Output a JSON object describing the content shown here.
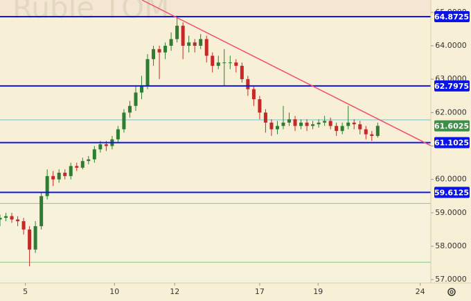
{
  "chart_data": {
    "type": "candlestick",
    "watermark": "Ruble TOM",
    "xlim": [
      0,
      73
    ],
    "xticks": [
      {
        "value": 4.3,
        "label": "5"
      },
      {
        "value": 19.4,
        "label": "10"
      },
      {
        "value": 29.6,
        "label": "12"
      },
      {
        "value": 44,
        "label": "17"
      },
      {
        "value": 53.9,
        "label": "19"
      },
      {
        "value": 71.2,
        "label": "24"
      }
    ],
    "ylim": [
      56.9,
      65.37
    ],
    "yticks": [
      {
        "value": 57,
        "label": "57.0000"
      },
      {
        "value": 58,
        "label": "58.0000"
      },
      {
        "value": 59,
        "label": "59.0000"
      },
      {
        "value": 60,
        "label": "60.0000"
      },
      {
        "value": 61,
        "label": "61.0000"
      },
      {
        "value": 62,
        "label": "62.0000"
      },
      {
        "value": 63,
        "label": "63.0000"
      },
      {
        "value": 64,
        "label": "64.0000"
      },
      {
        "value": 65,
        "label": "65.0000"
      }
    ],
    "up_color": "#2e7d32",
    "down_color": "#c62828",
    "open": [
      58.8,
      58.85,
      58.9,
      58.8,
      58.75,
      58.5,
      57.9,
      58.6,
      59.5,
      60.1,
      60.0,
      60.2,
      60.1,
      60.4,
      60.35,
      60.55,
      60.6,
      60.9,
      61.05,
      61.0,
      61.2,
      61.5,
      62.0,
      62.2,
      62.6,
      62.8,
      63.6,
      63.9,
      63.8,
      64.0,
      64.2,
      64.6,
      64.0,
      64.1,
      64.0,
      64.2,
      63.7,
      63.4,
      63.5,
      63.5,
      63.5,
      63.4,
      63.0,
      62.7,
      62.4,
      62.0,
      61.7,
      61.5,
      61.6,
      61.7,
      61.8,
      61.6,
      61.7,
      61.6,
      61.65,
      61.7,
      61.75,
      61.6,
      61.45,
      61.6,
      61.7,
      61.65,
      61.5,
      61.35,
      61.3
    ],
    "high": [
      58.95,
      59.0,
      59.0,
      58.9,
      58.85,
      58.6,
      58.75,
      59.6,
      60.3,
      60.25,
      60.3,
      60.3,
      60.5,
      60.5,
      60.65,
      60.7,
      61.0,
      61.15,
      61.15,
      61.3,
      61.6,
      62.1,
      62.35,
      62.8,
      63.1,
      63.75,
      64.0,
      64.0,
      64.1,
      64.4,
      64.9,
      64.7,
      64.3,
      64.2,
      64.35,
      64.3,
      63.8,
      63.7,
      63.9,
      63.7,
      63.6,
      63.5,
      63.1,
      62.8,
      62.5,
      62.1,
      61.8,
      61.75,
      62.2,
      62.0,
      61.9,
      61.8,
      61.8,
      61.75,
      61.8,
      61.9,
      61.85,
      61.7,
      61.7,
      62.2,
      61.8,
      61.75,
      61.6,
      61.45,
      61.7
    ],
    "low": [
      58.6,
      58.75,
      58.7,
      58.6,
      58.35,
      57.4,
      57.8,
      58.5,
      59.4,
      59.8,
      59.9,
      60.0,
      60.0,
      60.25,
      60.3,
      60.45,
      60.5,
      60.8,
      60.85,
      60.9,
      61.1,
      61.4,
      61.85,
      62.05,
      62.4,
      62.7,
      63.4,
      63.0,
      63.6,
      63.85,
      64.1,
      63.6,
      63.8,
      63.8,
      63.9,
      63.5,
      63.2,
      63.3,
      62.8,
      63.3,
      63.2,
      62.9,
      62.5,
      62.2,
      61.8,
      61.4,
      61.3,
      61.35,
      61.5,
      61.6,
      61.45,
      61.5,
      61.45,
      61.5,
      61.55,
      61.6,
      61.5,
      61.3,
      61.35,
      61.5,
      61.5,
      61.35,
      61.2,
      61.15,
      61.25
    ],
    "close": [
      58.85,
      58.9,
      58.8,
      58.75,
      58.5,
      57.9,
      58.6,
      59.5,
      60.1,
      60.0,
      60.2,
      60.1,
      60.4,
      60.35,
      60.55,
      60.6,
      60.9,
      61.05,
      61.0,
      61.2,
      61.5,
      62.0,
      62.2,
      62.6,
      62.8,
      63.6,
      63.9,
      63.8,
      64.0,
      64.2,
      64.6,
      64.0,
      64.1,
      64.0,
      64.2,
      63.7,
      63.4,
      63.5,
      63.5,
      63.5,
      63.4,
      63.0,
      62.7,
      62.4,
      62.0,
      61.7,
      61.5,
      61.6,
      61.7,
      61.8,
      61.6,
      61.7,
      61.6,
      61.65,
      61.7,
      61.75,
      61.6,
      61.45,
      61.6,
      61.7,
      61.65,
      61.5,
      61.35,
      61.3,
      61.6025
    ],
    "levels": [
      {
        "value": 64.8725,
        "color": "#0a14e6"
      },
      {
        "value": 62.7975,
        "color": "#0a14e6"
      },
      {
        "value": 61.1025,
        "color": "#0a14e6"
      },
      {
        "value": 59.6125,
        "color": "#0a14e6"
      }
    ],
    "last_price": {
      "value": 61.6025,
      "color": "#3d8f47"
    },
    "lines": [
      {
        "value": 61.78,
        "color": "#6cc3d5"
      },
      {
        "value": 59.28,
        "color": "#7fc97f"
      },
      {
        "value": 57.52,
        "color": "#7fc97f"
      }
    ],
    "trendline": {
      "x": [
        24.06,
        73
      ],
      "y": [
        65.37,
        61.01
      ],
      "color": "#f0506e"
    }
  }
}
